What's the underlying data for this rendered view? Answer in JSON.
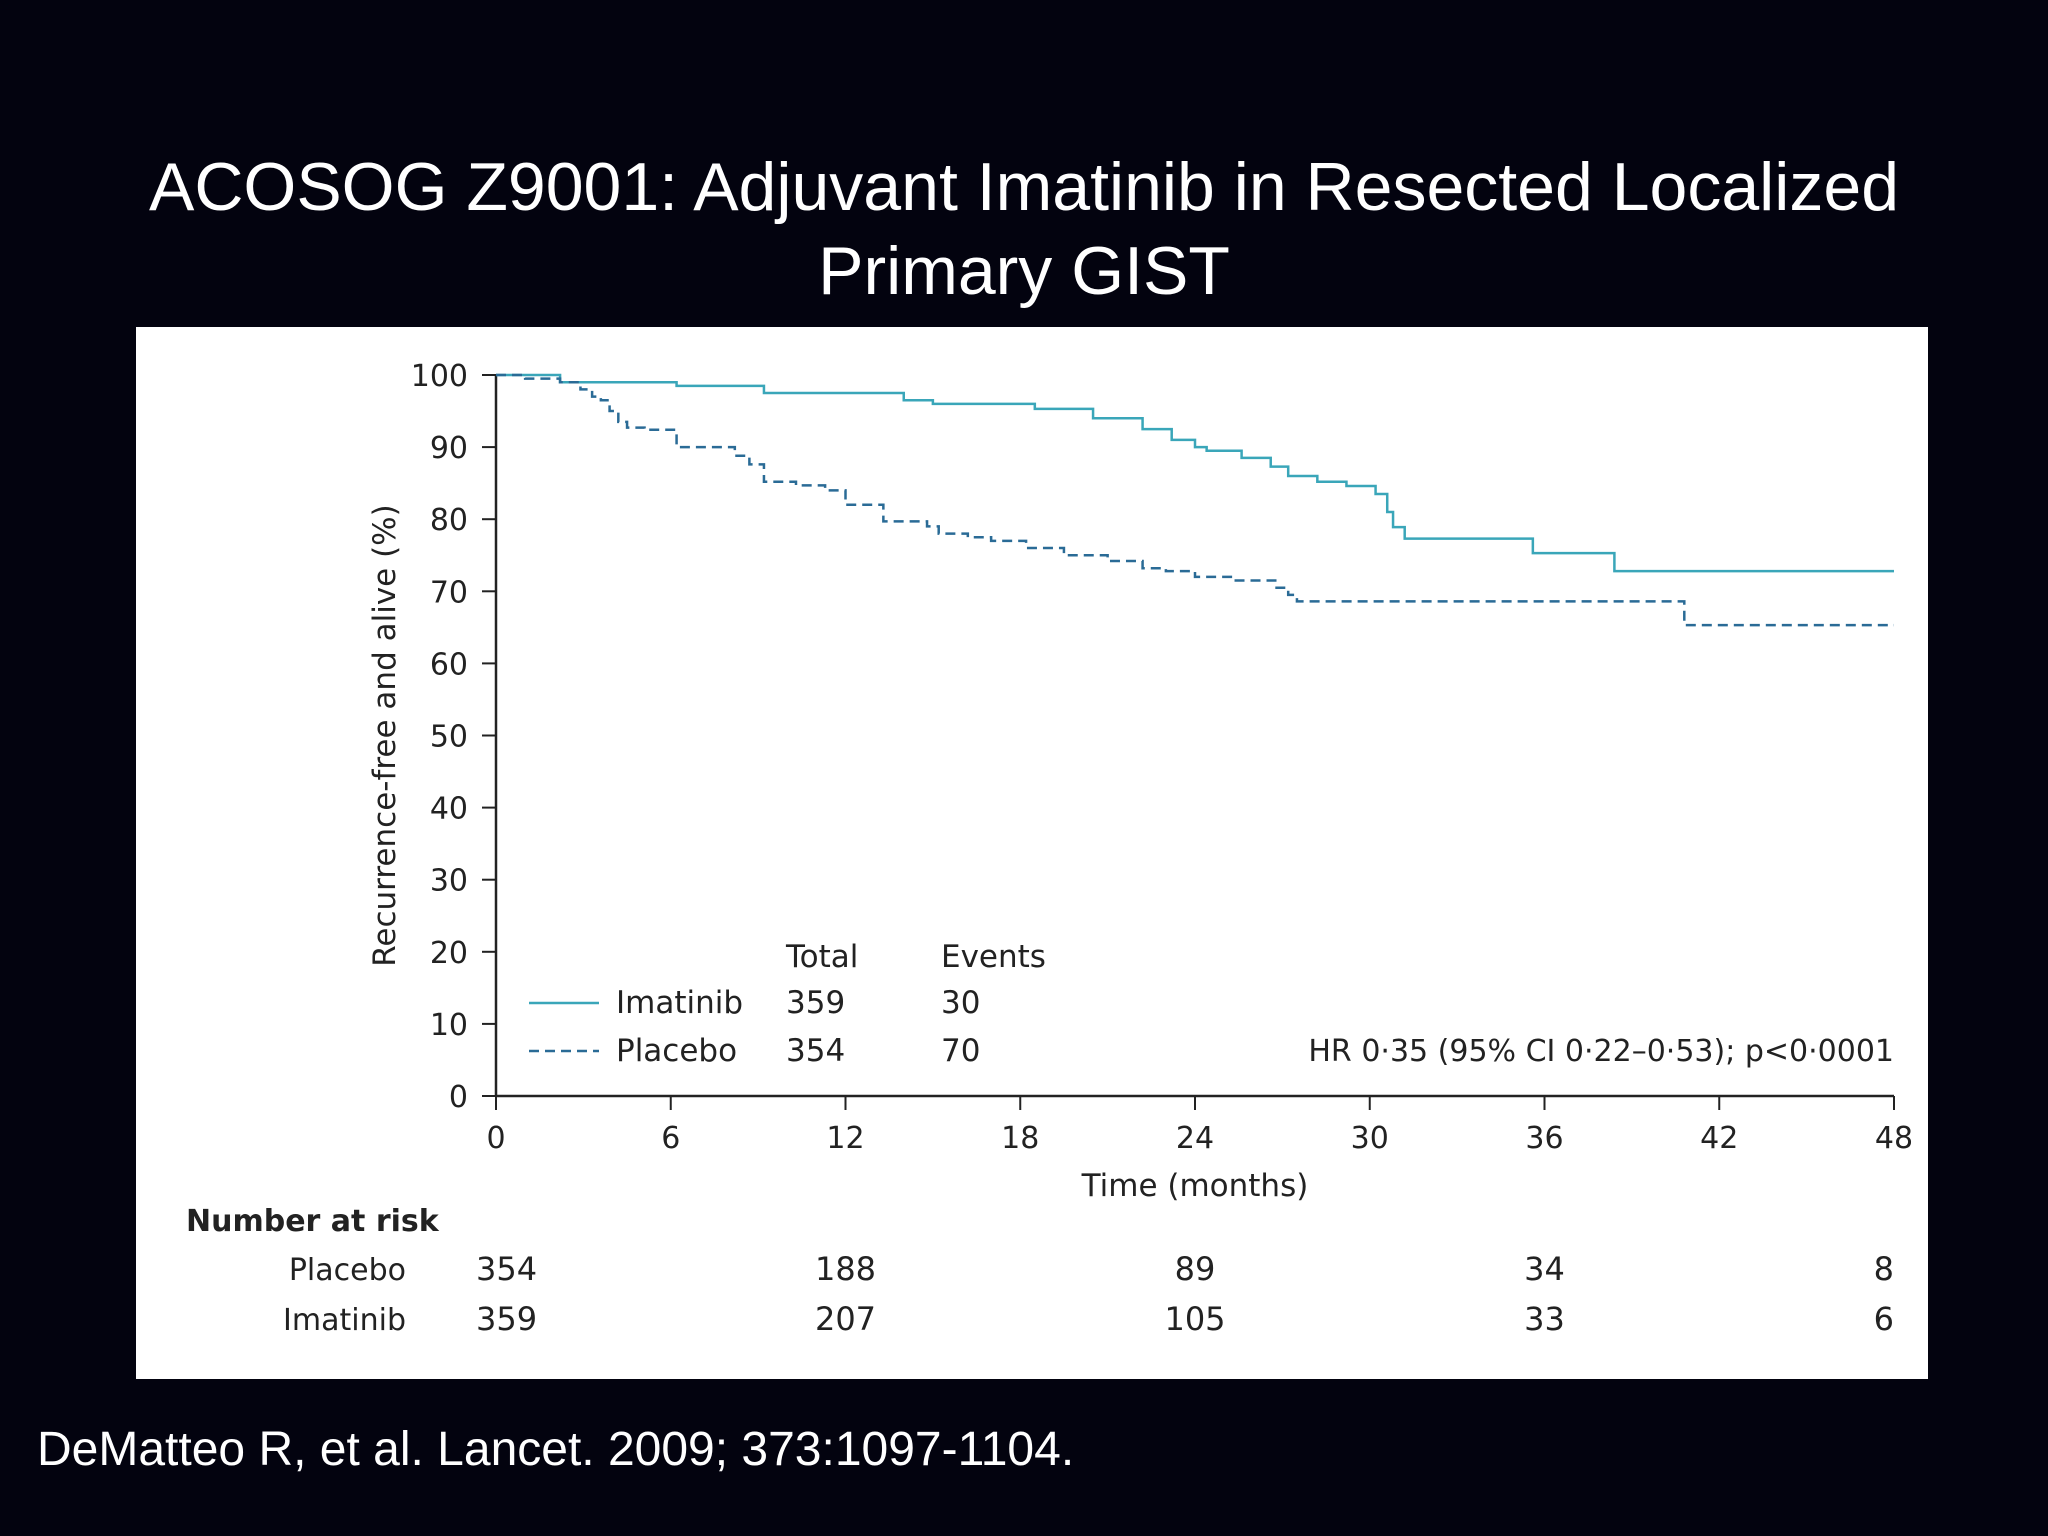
{
  "slide": {
    "title_line1": "ACOSOG Z9001: Adjuvant Imatinib in Resected Localized",
    "title_line2": "Primary GIST",
    "citation": "DeMatteo R, et al. Lancet. 2009; 373:1097-1104."
  },
  "colors": {
    "background": "#03030f",
    "panel": "#ffffff",
    "imatinib": "#3aa6b9",
    "placebo": "#2a6b96",
    "axis": "#222222"
  },
  "chart_data": {
    "type": "line",
    "title": "",
    "xlabel": "Time (months)",
    "ylabel": "Recurrence-free and alive (%)",
    "xlim": [
      0,
      48
    ],
    "ylim": [
      0,
      100
    ],
    "xticks": [
      0,
      6,
      12,
      18,
      24,
      30,
      36,
      42,
      48
    ],
    "yticks": [
      0,
      10,
      20,
      30,
      40,
      50,
      60,
      70,
      80,
      90,
      100
    ],
    "grid": false,
    "legend": {
      "placement": "bottom-left",
      "header_total": "Total",
      "header_events": "Events",
      "entries": [
        {
          "name": "Imatinib",
          "style": "solid",
          "total": "359",
          "events": "30"
        },
        {
          "name": "Placebo",
          "style": "dashed",
          "total": "354",
          "events": "70"
        }
      ]
    },
    "annotation": "HR 0·35 (95% CI 0·22–0·53); p<0·0001",
    "series": [
      {
        "name": "Imatinib",
        "style": "solid",
        "step_x": [
          0,
          2.2,
          6.2,
          9.2,
          14,
          15,
          18.5,
          20.5,
          22.2,
          23.2,
          24,
          24.4,
          25.6,
          26.6,
          27.2,
          28.2,
          29.2,
          30.2,
          30.6,
          30.8,
          31.2,
          35.6,
          38.4,
          48
        ],
        "step_y": [
          100,
          99,
          98.5,
          97.5,
          96.5,
          96,
          95.3,
          94,
          92.5,
          91,
          90,
          89.5,
          88.5,
          87.3,
          86,
          85.2,
          84.6,
          83.5,
          81,
          78.9,
          77.3,
          75.3,
          72.8,
          72.8
        ]
      },
      {
        "name": "Placebo",
        "style": "dashed",
        "step_x": [
          0,
          1,
          2.2,
          2.9,
          3.3,
          3.6,
          3.9,
          4.2,
          4.5,
          5.1,
          6.2,
          8.2,
          8.7,
          9.2,
          10.3,
          11.3,
          12,
          13.3,
          14.8,
          15.2,
          16.2,
          17,
          18.2,
          19.5,
          21,
          22.2,
          23,
          24,
          25.4,
          26.8,
          27.2,
          27.5,
          32,
          36,
          40.5,
          40.8,
          48
        ],
        "step_y": [
          100,
          99.5,
          99,
          98,
          97,
          96.5,
          95,
          93.5,
          92.7,
          92.4,
          90,
          88.8,
          87.6,
          85.2,
          84.7,
          84,
          82,
          79.7,
          79,
          78,
          77.5,
          77,
          76,
          75,
          74.2,
          73.2,
          72.8,
          72,
          71.5,
          70.5,
          69.5,
          68.6,
          68.6,
          68.6,
          68.6,
          65.3,
          65.3
        ]
      }
    ],
    "number_at_risk": {
      "title": "Number at risk",
      "times": [
        0,
        12,
        24,
        36,
        48
      ],
      "rows": [
        {
          "label": "Placebo",
          "values": [
            "354",
            "188",
            "89",
            "34",
            "8"
          ]
        },
        {
          "label": "Imatinib",
          "values": [
            "359",
            "207",
            "105",
            "33",
            "6"
          ]
        }
      ]
    }
  }
}
